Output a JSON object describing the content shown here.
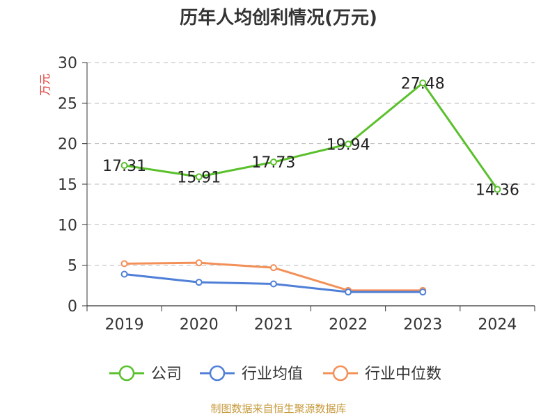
{
  "title": "历年人均创利情况(万元)",
  "source": "制图数据来自恒生聚源数据库",
  "chart_data": {
    "type": "line",
    "title": "历年人均创利情况(万元)",
    "ylabel": "万元",
    "xlabel": "",
    "categories": [
      "2019",
      "2020",
      "2021",
      "2022",
      "2023",
      "2024"
    ],
    "ylim": [
      0,
      30
    ],
    "yticks": [
      0,
      5,
      10,
      15,
      20,
      25,
      30
    ],
    "grid": true,
    "legend_position": "bottom",
    "series": [
      {
        "name": "公司",
        "color": "#5ac02c",
        "values": [
          17.31,
          15.91,
          17.73,
          19.94,
          27.48,
          14.36
        ],
        "labels": [
          "17.31",
          "15.91",
          "17.73",
          "19.94",
          "27.48",
          "14.36"
        ]
      },
      {
        "name": "行业均值",
        "color": "#4f7fd7",
        "values": [
          3.9,
          2.9,
          2.7,
          1.7,
          1.7,
          null
        ]
      },
      {
        "name": "行业中位数",
        "color": "#f39058",
        "values": [
          5.2,
          5.3,
          4.7,
          1.9,
          1.9,
          null
        ]
      }
    ]
  }
}
